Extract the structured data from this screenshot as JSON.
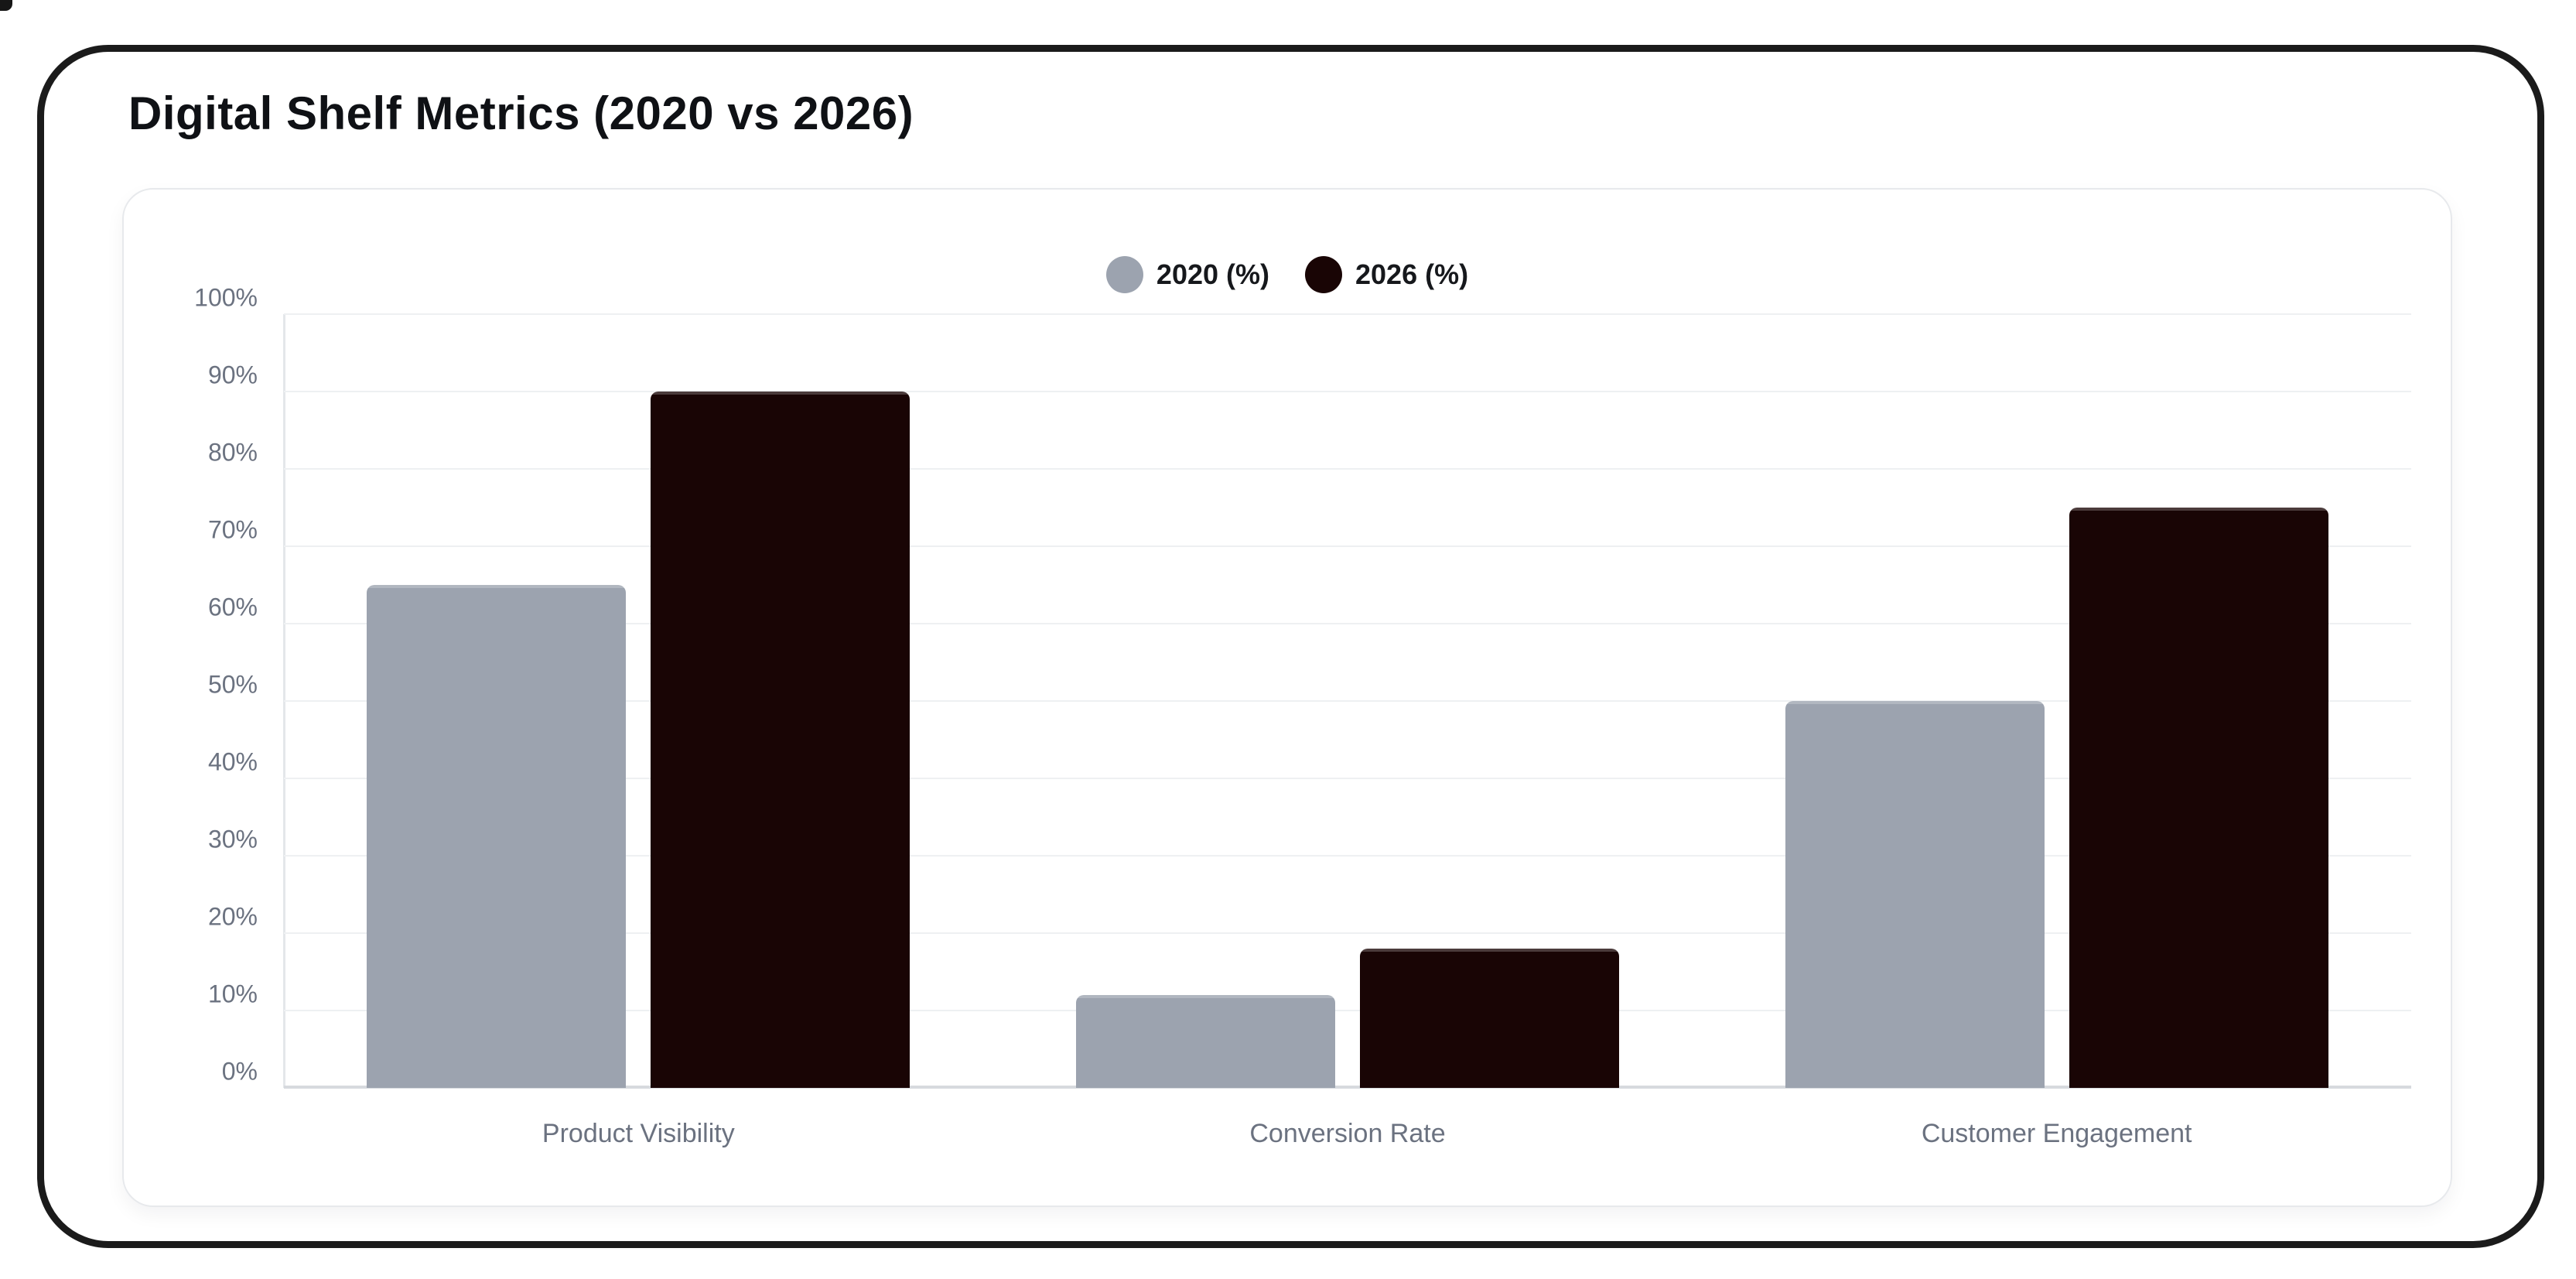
{
  "chart_data": {
    "type": "bar",
    "title": "Digital Shelf Metrics (2020 vs 2026)",
    "categories": [
      "Product Visibility",
      "Conversion Rate",
      "Customer Engagement"
    ],
    "series": [
      {
        "name": "2020 (%)",
        "color": "#9ca3af",
        "values": [
          65,
          12,
          50
        ]
      },
      {
        "name": "2026 (%)",
        "color": "#190505",
        "values": [
          90,
          18,
          75
        ]
      }
    ],
    "xlabel": "",
    "ylabel": "",
    "ylim": [
      0,
      100
    ],
    "ytick_step": 10,
    "ytick_suffix": "%",
    "legend_position": "top",
    "grid": true
  }
}
